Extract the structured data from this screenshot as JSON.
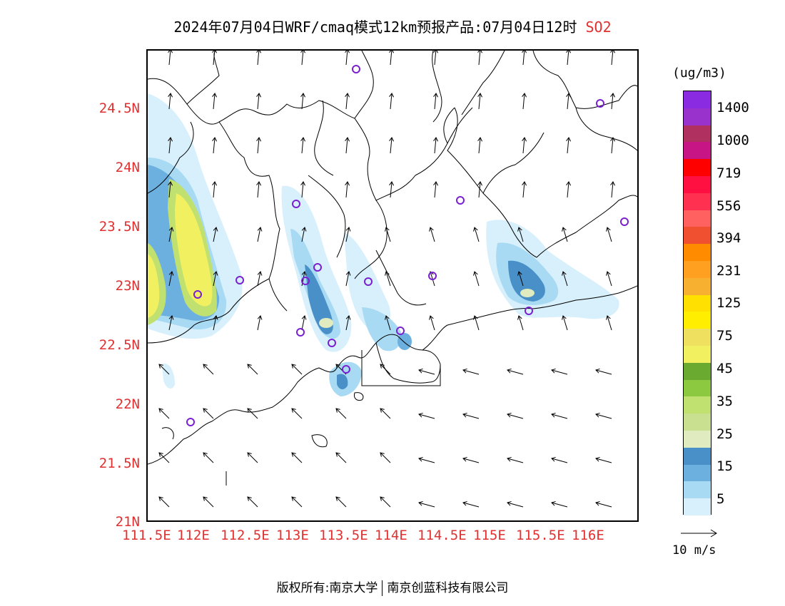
{
  "title": {
    "main": "2024年07月04日WRF/cmaq模式12km预报产品:07月04日12时",
    "species": "SO2"
  },
  "map": {
    "lat_labels": [
      "24.5N",
      "24N",
      "23.5N",
      "23N",
      "22.5N",
      "22N",
      "21.5N",
      "21N"
    ],
    "lon_labels": [
      "111.5E",
      "112E",
      "112.5E",
      "113E",
      "113.5E",
      "114E",
      "114.5E",
      "115E",
      "115.5E",
      "116E"
    ]
  },
  "colorbar": {
    "unit": "(ug/m3)",
    "colors": [
      "#8a2be2",
      "#9932cc",
      "#b03060",
      "#c71585",
      "#ff0000",
      "#ff1040",
      "#ff3050",
      "#ff6060",
      "#f05030",
      "#ff8c00",
      "#ffa020",
      "#f8b030",
      "#ffe000",
      "#ffee00",
      "#f0e060",
      "#f0f060",
      "#6aaa30",
      "#8cc840",
      "#c0e070",
      "#c8e090",
      "#e0ecc0",
      "#4a90c8",
      "#6cb0e0",
      "#a8daf4",
      "#d8f0fc",
      "#ffffff"
    ],
    "labels": [
      "1400",
      "1000",
      "719",
      "556",
      "394",
      "231",
      "125",
      "75",
      "45",
      "35",
      "25",
      "15",
      "5"
    ]
  },
  "reference_vector": {
    "label": "10 m/s"
  },
  "footer": {
    "left": "版权所有:南京大学",
    "right": "南京创蓝科技有限公司"
  }
}
